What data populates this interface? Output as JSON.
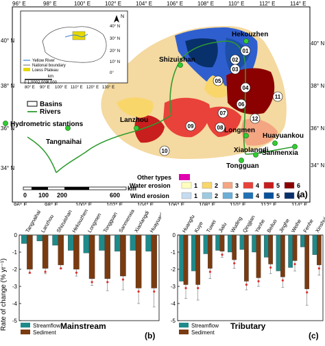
{
  "map": {
    "lon_ticks": [
      "96° E",
      "98° E",
      "100° E",
      "102° E",
      "104° E",
      "106° E",
      "108° E",
      "110° E",
      "112° E",
      "114° E"
    ],
    "lat_ticks_left": [
      "40° N",
      "38° N",
      "36° N",
      "34° N"
    ],
    "lat_ticks_right": [
      "40° N",
      "38° N",
      "36° N",
      "34° N"
    ],
    "stations": [
      "Hekouzhen",
      "Shizuishan",
      "Lanzhou",
      "Tangnaihai",
      "Huayuankou",
      "Longmen",
      "Xiaolangdi",
      "Tongguan",
      "Sanmenxia"
    ],
    "basin_numbers": [
      "01",
      "02",
      "03",
      "04",
      "05",
      "06",
      "07",
      "08",
      "09",
      "10",
      "11",
      "12"
    ],
    "legend_basins": "Basins",
    "legend_rivers": "Rivers",
    "legend_hydro": "Hydrometric stantions",
    "legend_other": "Other types",
    "legend_water": "Water erosion",
    "legend_wind": "Wind erosion",
    "erosion_levels": [
      "1",
      "2",
      "3",
      "4",
      "5",
      "6"
    ],
    "scale_label": "km",
    "scale_ticks": [
      "0",
      "100",
      "200",
      "600"
    ],
    "panel_label": "(a)",
    "inset": {
      "legend": [
        "Yellow River",
        "National boundary",
        "Loess Plateau"
      ],
      "scale_label": "km",
      "scale_ticks": [
        "0",
        "1,000",
        "2,000",
        "4,000"
      ],
      "lon_ticks": [
        "80° E",
        "90° E",
        "100° E",
        "110° E",
        "120° E",
        "130° E"
      ],
      "lat_ticks": [
        "40° N",
        "30° N",
        "20° N",
        "10° N",
        "0°"
      ],
      "north": "N"
    },
    "colors": {
      "other": "#e000b0",
      "water": [
        "#ffffbf",
        "#f9d66a",
        "#f4a582",
        "#e8423a",
        "#c81e1e",
        "#8b0000"
      ],
      "wind": [
        "#c6dbef",
        "#9ecae1",
        "#6baed6",
        "#2171b5",
        "#08519c",
        "#08306b"
      ]
    }
  },
  "chart_data": [
    {
      "type": "bar",
      "title": "Mainstream",
      "panel_label": "(b)",
      "ylabel": "Rate of change (% yr⁻¹)",
      "ylim": [
        -5,
        0
      ],
      "yticks": [
        "0",
        "-1",
        "-2",
        "-3",
        "-4",
        "-5"
      ],
      "categories": [
        "Tangnaihai",
        "Lanzhou",
        "Shizuishan",
        "Hekouzhen",
        "Longmen",
        "Tongguan",
        "Sanmenxia",
        "Xiaolangdi",
        "Huayuankou"
      ],
      "series": [
        {
          "name": "Streamflow",
          "color": "#1f8a8a",
          "values": [
            -0.5,
            -0.35,
            -0.6,
            -0.9,
            -1.05,
            -0.9,
            -0.95,
            -0.9,
            -0.95
          ]
        },
        {
          "name": "Sediment",
          "color": "#7a3b10",
          "values": [
            -2.0,
            -1.95,
            -1.75,
            -2.0,
            -2.55,
            -2.55,
            -2.4,
            -3.1,
            -3.1
          ],
          "error": [
            0.25,
            0.3,
            0.2,
            0.4,
            0.4,
            0.7,
            0.8,
            0.9,
            1.1
          ]
        }
      ],
      "legend": "bottom-left",
      "stars": true
    },
    {
      "type": "bar",
      "title": "Tributary",
      "panel_label": "(c)",
      "ylim": [
        -5,
        0
      ],
      "yticks": [
        "0",
        "-1",
        "-2",
        "-3",
        "-4",
        "-5"
      ],
      "categories": [
        "Huangfu",
        "Kuye",
        "Tuwei",
        "Jialu",
        "Wuding",
        "Qingjian",
        "Yanhe",
        "Beiluo",
        "Jinghe",
        "Weihe",
        "Fenhe",
        "Xinshui"
      ],
      "series": [
        {
          "name": "Streamflow",
          "color": "#1f8a8a",
          "values": [
            -2.7,
            -2.1,
            -1.1,
            -0.9,
            -1.0,
            -0.85,
            -1.0,
            -1.3,
            -2.1,
            -1.9,
            -0.7,
            -1.15
          ]
        },
        {
          "name": "Sediment",
          "color": "#7a3b10",
          "values": [
            -2.9,
            -2.9,
            -1.95,
            -0.95,
            -1.45,
            -2.7,
            -2.5,
            -1.7,
            -2.45,
            -1.5,
            -3.15,
            -1.75
          ],
          "error": [
            0.8,
            0.9,
            0.6,
            0.35,
            0.5,
            0.5,
            0.5,
            0.55,
            0.6,
            0.6,
            0.95,
            0.6
          ]
        }
      ],
      "legend": "bottom-left",
      "stars": true
    }
  ]
}
